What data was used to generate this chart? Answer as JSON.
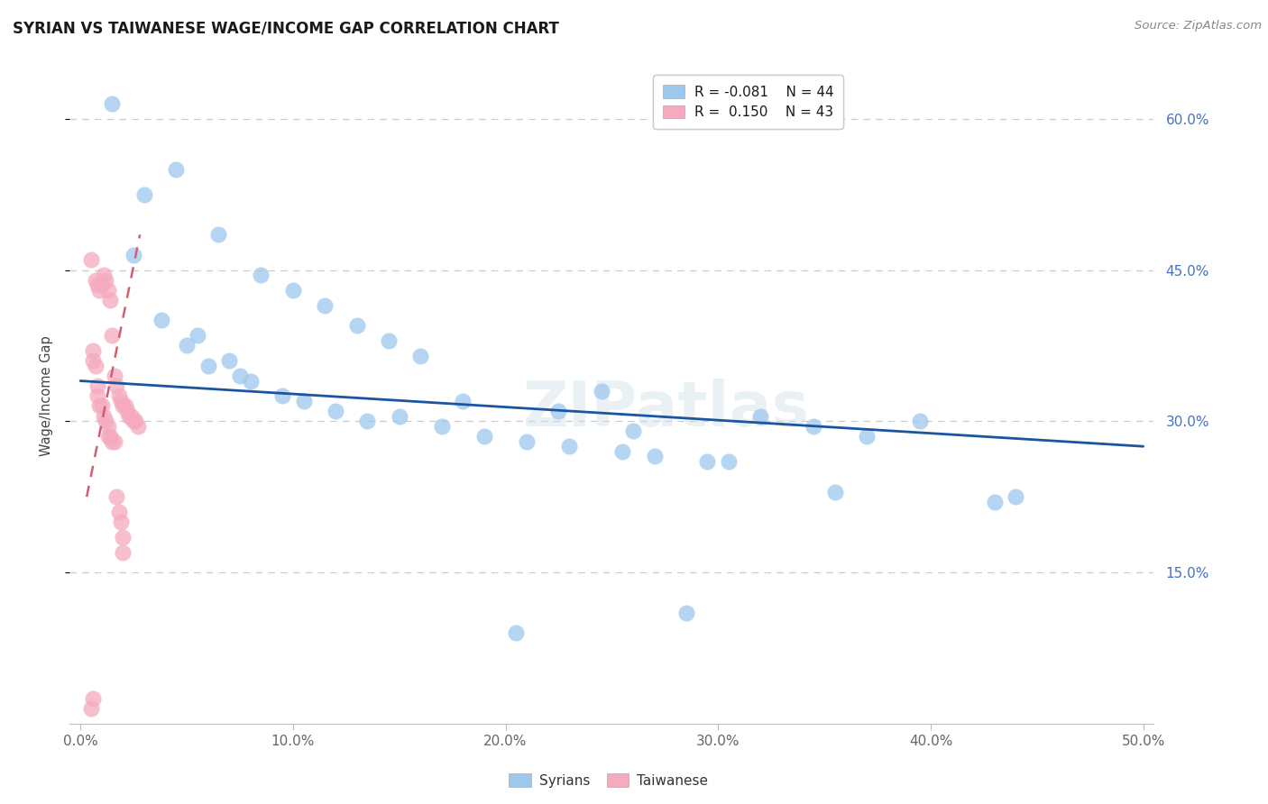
{
  "title": "SYRIAN VS TAIWANESE WAGE/INCOME GAP CORRELATION CHART",
  "source": "Source: ZipAtlas.com",
  "xlim": [
    -0.5,
    50.5
  ],
  "ylim": [
    0.0,
    65.0
  ],
  "x_ticks": [
    0,
    10,
    20,
    30,
    40,
    50
  ],
  "y_ticks": [
    15,
    30,
    45,
    60
  ],
  "syrian_color": "#9DC8EE",
  "taiwanese_color": "#F5AABE",
  "syrian_line_color": "#1A56A0",
  "taiwanese_line_color": "#D06070",
  "watermark": "ZIPatlas",
  "syrian_x": [
    1.5,
    3.0,
    4.5,
    6.5,
    8.5,
    10.0,
    11.5,
    13.0,
    14.5,
    16.0,
    5.5,
    7.0,
    8.0,
    9.5,
    12.0,
    15.0,
    17.0,
    19.0,
    21.0,
    23.0,
    25.5,
    27.0,
    29.5,
    32.0,
    34.5,
    37.0,
    39.5,
    44.0,
    2.5,
    3.8,
    5.0,
    6.0,
    7.5,
    10.5,
    13.5,
    18.0,
    22.5,
    26.0,
    30.5,
    35.5,
    24.5,
    28.5,
    20.5,
    43.0
  ],
  "syrian_y": [
    61.5,
    52.5,
    55.0,
    48.5,
    44.5,
    43.0,
    41.5,
    39.5,
    38.0,
    36.5,
    38.5,
    36.0,
    34.0,
    32.5,
    31.0,
    30.5,
    29.5,
    28.5,
    28.0,
    27.5,
    27.0,
    26.5,
    26.0,
    30.5,
    29.5,
    28.5,
    30.0,
    22.5,
    46.5,
    40.0,
    37.5,
    35.5,
    34.5,
    32.0,
    30.0,
    32.0,
    31.0,
    29.0,
    26.0,
    23.0,
    33.0,
    11.0,
    9.0,
    22.0
  ],
  "taiwanese_x": [
    0.5,
    0.7,
    0.8,
    0.9,
    1.0,
    1.1,
    1.2,
    1.3,
    1.4,
    1.5,
    1.6,
    1.7,
    1.8,
    1.9,
    2.0,
    2.1,
    2.2,
    2.3,
    2.4,
    2.5,
    2.6,
    2.7,
    0.6,
    0.6,
    0.7,
    0.8,
    0.8,
    0.9,
    1.0,
    1.1,
    1.2,
    1.3,
    1.3,
    1.4,
    1.5,
    1.6,
    1.7,
    1.8,
    1.9,
    2.0,
    2.0,
    0.5,
    0.6
  ],
  "taiwanese_y": [
    46.0,
    44.0,
    43.5,
    43.0,
    43.5,
    44.5,
    44.0,
    43.0,
    42.0,
    38.5,
    34.5,
    33.5,
    32.5,
    32.0,
    31.5,
    31.5,
    31.0,
    30.5,
    30.5,
    30.0,
    30.0,
    29.5,
    37.0,
    36.0,
    35.5,
    33.5,
    32.5,
    31.5,
    31.5,
    30.5,
    30.0,
    29.5,
    28.5,
    28.5,
    28.0,
    28.0,
    22.5,
    21.0,
    20.0,
    18.5,
    17.0,
    1.5,
    2.5
  ],
  "syrian_trend_x": [
    0.0,
    50.0
  ],
  "syrian_trend_y": [
    34.0,
    27.5
  ],
  "taiwanese_trend_x": [
    0.3,
    2.8
  ],
  "taiwanese_trend_y": [
    22.5,
    48.5
  ]
}
